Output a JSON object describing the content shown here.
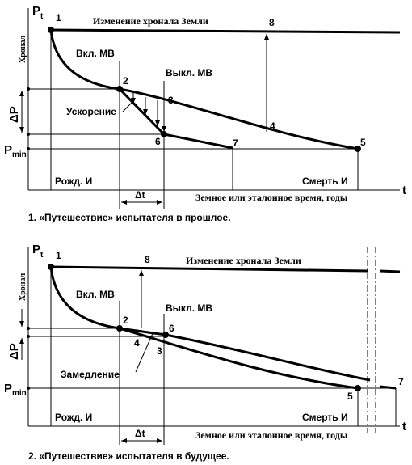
{
  "diagrams": [
    {
      "axis_y": {
        "main": "P",
        "sub": "t"
      },
      "y_label": "Хронал",
      "earth_line": "Изменение хронала Земли",
      "on": "Вкл. МВ",
      "off": "Выкл. МВ",
      "effect": "Ускорение",
      "delta_p": "ΔP",
      "p_min": {
        "main": "P",
        "sub": "min"
      },
      "delta_t": "Δt",
      "birth": "Рожд. И",
      "death": "Смерть И",
      "x_axis": "Земное или эталонное время, годы",
      "x_letter": "t",
      "points": [
        "1",
        "2",
        "3",
        "4",
        "5",
        "6",
        "7",
        "8"
      ],
      "caption": "1. «Путешествие» испытателя в прошлое."
    },
    {
      "axis_y": {
        "main": "P",
        "sub": "t"
      },
      "y_label": "Хронал",
      "earth_line": "Изменение хронала Земли",
      "on": "Вкл. МВ",
      "off": "Выкл. МВ",
      "effect": "Замедление",
      "delta_p": "ΔP",
      "p_min": {
        "main": "P",
        "sub": "min"
      },
      "delta_t": "Δt",
      "birth": "Рожд. И",
      "death": "Смерть И",
      "x_axis": "Земное или эталонное время, годы",
      "x_letter": "t",
      "points": [
        "1",
        "2",
        "3",
        "4",
        "5",
        "6",
        "7",
        "8"
      ],
      "caption": "2. «Путешествие» испытателя в будущее."
    }
  ]
}
